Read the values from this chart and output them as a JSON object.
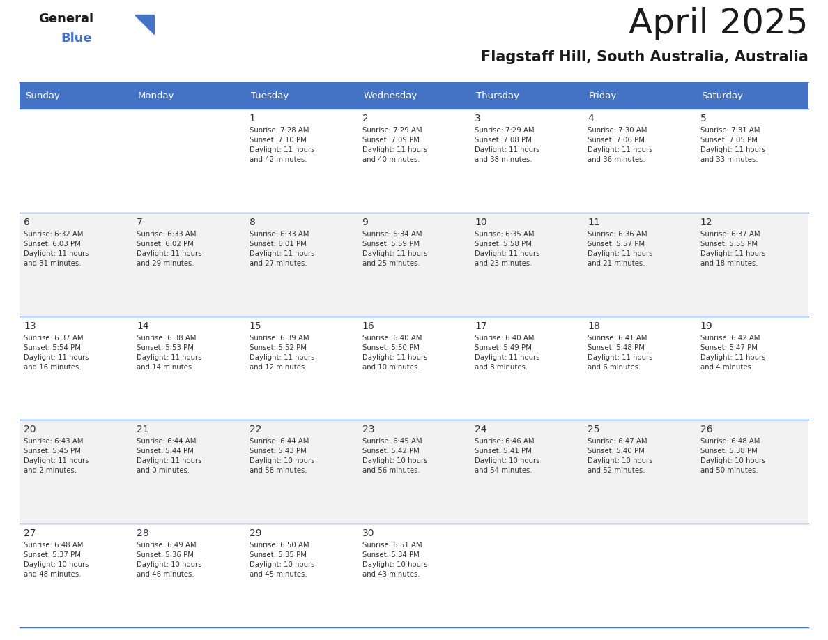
{
  "title": "April 2025",
  "subtitle": "Flagstaff Hill, South Australia, Australia",
  "header_color": "#4472C4",
  "header_text_color": "#FFFFFF",
  "alt_row_color": "#F2F2F2",
  "white_color": "#FFFFFF",
  "text_color": "#333333",
  "border_color": "#4472C4",
  "days_of_week": [
    "Sunday",
    "Monday",
    "Tuesday",
    "Wednesday",
    "Thursday",
    "Friday",
    "Saturday"
  ],
  "weeks": [
    [
      {
        "day": "",
        "info": ""
      },
      {
        "day": "",
        "info": ""
      },
      {
        "day": "1",
        "info": "Sunrise: 7:28 AM\nSunset: 7:10 PM\nDaylight: 11 hours\nand 42 minutes."
      },
      {
        "day": "2",
        "info": "Sunrise: 7:29 AM\nSunset: 7:09 PM\nDaylight: 11 hours\nand 40 minutes."
      },
      {
        "day": "3",
        "info": "Sunrise: 7:29 AM\nSunset: 7:08 PM\nDaylight: 11 hours\nand 38 minutes."
      },
      {
        "day": "4",
        "info": "Sunrise: 7:30 AM\nSunset: 7:06 PM\nDaylight: 11 hours\nand 36 minutes."
      },
      {
        "day": "5",
        "info": "Sunrise: 7:31 AM\nSunset: 7:05 PM\nDaylight: 11 hours\nand 33 minutes."
      }
    ],
    [
      {
        "day": "6",
        "info": "Sunrise: 6:32 AM\nSunset: 6:03 PM\nDaylight: 11 hours\nand 31 minutes."
      },
      {
        "day": "7",
        "info": "Sunrise: 6:33 AM\nSunset: 6:02 PM\nDaylight: 11 hours\nand 29 minutes."
      },
      {
        "day": "8",
        "info": "Sunrise: 6:33 AM\nSunset: 6:01 PM\nDaylight: 11 hours\nand 27 minutes."
      },
      {
        "day": "9",
        "info": "Sunrise: 6:34 AM\nSunset: 5:59 PM\nDaylight: 11 hours\nand 25 minutes."
      },
      {
        "day": "10",
        "info": "Sunrise: 6:35 AM\nSunset: 5:58 PM\nDaylight: 11 hours\nand 23 minutes."
      },
      {
        "day": "11",
        "info": "Sunrise: 6:36 AM\nSunset: 5:57 PM\nDaylight: 11 hours\nand 21 minutes."
      },
      {
        "day": "12",
        "info": "Sunrise: 6:37 AM\nSunset: 5:55 PM\nDaylight: 11 hours\nand 18 minutes."
      }
    ],
    [
      {
        "day": "13",
        "info": "Sunrise: 6:37 AM\nSunset: 5:54 PM\nDaylight: 11 hours\nand 16 minutes."
      },
      {
        "day": "14",
        "info": "Sunrise: 6:38 AM\nSunset: 5:53 PM\nDaylight: 11 hours\nand 14 minutes."
      },
      {
        "day": "15",
        "info": "Sunrise: 6:39 AM\nSunset: 5:52 PM\nDaylight: 11 hours\nand 12 minutes."
      },
      {
        "day": "16",
        "info": "Sunrise: 6:40 AM\nSunset: 5:50 PM\nDaylight: 11 hours\nand 10 minutes."
      },
      {
        "day": "17",
        "info": "Sunrise: 6:40 AM\nSunset: 5:49 PM\nDaylight: 11 hours\nand 8 minutes."
      },
      {
        "day": "18",
        "info": "Sunrise: 6:41 AM\nSunset: 5:48 PM\nDaylight: 11 hours\nand 6 minutes."
      },
      {
        "day": "19",
        "info": "Sunrise: 6:42 AM\nSunset: 5:47 PM\nDaylight: 11 hours\nand 4 minutes."
      }
    ],
    [
      {
        "day": "20",
        "info": "Sunrise: 6:43 AM\nSunset: 5:45 PM\nDaylight: 11 hours\nand 2 minutes."
      },
      {
        "day": "21",
        "info": "Sunrise: 6:44 AM\nSunset: 5:44 PM\nDaylight: 11 hours\nand 0 minutes."
      },
      {
        "day": "22",
        "info": "Sunrise: 6:44 AM\nSunset: 5:43 PM\nDaylight: 10 hours\nand 58 minutes."
      },
      {
        "day": "23",
        "info": "Sunrise: 6:45 AM\nSunset: 5:42 PM\nDaylight: 10 hours\nand 56 minutes."
      },
      {
        "day": "24",
        "info": "Sunrise: 6:46 AM\nSunset: 5:41 PM\nDaylight: 10 hours\nand 54 minutes."
      },
      {
        "day": "25",
        "info": "Sunrise: 6:47 AM\nSunset: 5:40 PM\nDaylight: 10 hours\nand 52 minutes."
      },
      {
        "day": "26",
        "info": "Sunrise: 6:48 AM\nSunset: 5:38 PM\nDaylight: 10 hours\nand 50 minutes."
      }
    ],
    [
      {
        "day": "27",
        "info": "Sunrise: 6:48 AM\nSunset: 5:37 PM\nDaylight: 10 hours\nand 48 minutes."
      },
      {
        "day": "28",
        "info": "Sunrise: 6:49 AM\nSunset: 5:36 PM\nDaylight: 10 hours\nand 46 minutes."
      },
      {
        "day": "29",
        "info": "Sunrise: 6:50 AM\nSunset: 5:35 PM\nDaylight: 10 hours\nand 45 minutes."
      },
      {
        "day": "30",
        "info": "Sunrise: 6:51 AM\nSunset: 5:34 PM\nDaylight: 10 hours\nand 43 minutes."
      },
      {
        "day": "",
        "info": ""
      },
      {
        "day": "",
        "info": ""
      },
      {
        "day": "",
        "info": ""
      }
    ]
  ],
  "fig_width": 11.88,
  "fig_height": 9.18,
  "dpi": 100
}
